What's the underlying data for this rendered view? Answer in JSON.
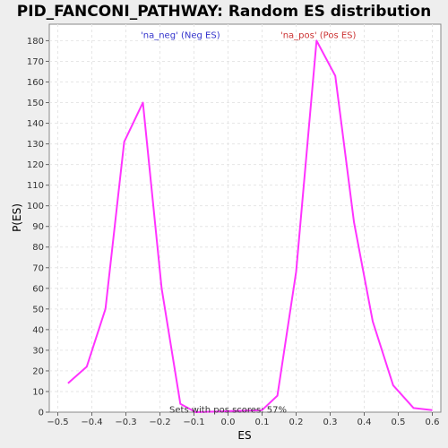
{
  "chart_data": {
    "type": "line",
    "title": "PID_FANCONI_PATHWAY: Random ES distribution",
    "xlabel": "ES",
    "ylabel": "P(ES)",
    "xlim": [
      -0.525,
      0.625
    ],
    "ylim": [
      0,
      188
    ],
    "xticks": [
      -0.5,
      -0.4,
      -0.3,
      -0.2,
      -0.1,
      0.0,
      0.1,
      0.2,
      0.3,
      0.4,
      0.5,
      0.6
    ],
    "xtick_labels": [
      "−0.5",
      "−0.4",
      "−0.3",
      "−0.2",
      "−0.1",
      "0.0",
      "0.1",
      "0.2",
      "0.3",
      "0.4",
      "0.5",
      "0.6"
    ],
    "yticks": [
      0,
      10,
      20,
      30,
      40,
      50,
      60,
      70,
      80,
      90,
      100,
      110,
      120,
      130,
      140,
      150,
      160,
      170,
      180
    ],
    "grid": true,
    "series": [
      {
        "color": "#ff33ff",
        "x": [
          -0.47,
          -0.415,
          -0.36,
          -0.305,
          -0.25,
          -0.195,
          -0.14,
          -0.095,
          0.1,
          0.145,
          0.2,
          0.26,
          0.315,
          0.37,
          0.425,
          0.485,
          0.545,
          0.6
        ],
        "y": [
          14,
          22,
          50,
          131,
          150,
          60,
          4,
          0,
          1,
          8,
          68,
          180,
          163,
          92,
          44,
          13,
          2,
          1
        ]
      }
    ],
    "annotations": [
      {
        "text": "'na_neg' (Neg ES)",
        "color": "#3333cc",
        "x": -0.14,
        "y": 183
      },
      {
        "text": "'na_pos' (Pos ES)",
        "color": "#cc3333",
        "x": 0.265,
        "y": 183
      },
      {
        "text": "Sets with pos scores: 57%",
        "color": "#333333",
        "x": 0.0,
        "y": 1.5
      }
    ]
  }
}
